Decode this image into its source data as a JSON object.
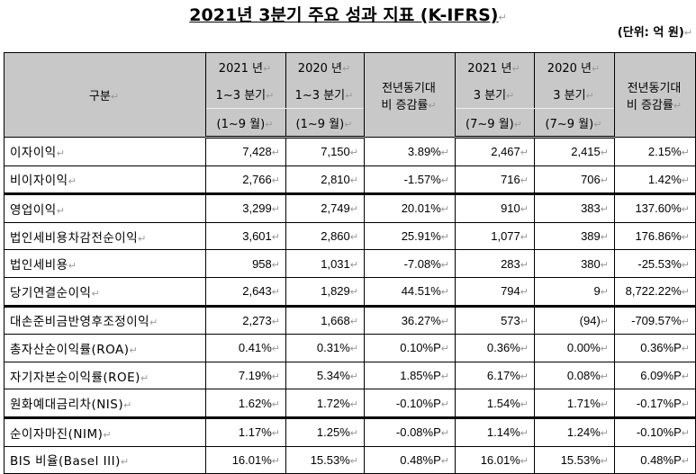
{
  "title": "2021년 3분기 주요 성과 지표 (K-IFRS)",
  "unit": "(단위: 억 원)",
  "header": {
    "category": "구분",
    "col1": [
      "2021 년",
      "1~3 분기",
      "(1~9 월)"
    ],
    "col2": [
      "2020 년",
      "1~3 분기",
      "(1~9 월)"
    ],
    "col3": [
      "전년동기대",
      "비 증감률"
    ],
    "col4": [
      "2021 년",
      "3 분기",
      "(7~9 월)"
    ],
    "col5": [
      "2020 년",
      "3 분기",
      "(7~9 월)"
    ],
    "col6": [
      "전년동기대",
      "비 증감률"
    ]
  },
  "rows": [
    {
      "label": "이자이익",
      "values": [
        "7,428",
        "7,150",
        "3.89%",
        "2,467",
        "2,415",
        "2.15%"
      ]
    },
    {
      "label": "비이자이익",
      "values": [
        "2,766",
        "2,810",
        "-1.57%",
        "716",
        "706",
        "1.42%"
      ]
    },
    {
      "label": "영업이익",
      "values": [
        "3,299",
        "2,749",
        "20.01%",
        "910",
        "383",
        "137.60%"
      ]
    },
    {
      "label": "법인세비용차감전순이익",
      "values": [
        "3,601",
        "2,860",
        "25.91%",
        "1,077",
        "389",
        "176.86%"
      ]
    },
    {
      "label": "법인세비용",
      "values": [
        "958",
        "1,031",
        "-7.08%",
        "283",
        "380",
        "-25.53%"
      ]
    },
    {
      "label": "당기연결순이익",
      "values": [
        "2,643",
        "1,829",
        "44.51%",
        "794",
        "9",
        "8,722.22%"
      ]
    },
    {
      "label": "대손준비금반영후조정이익",
      "values": [
        "2,273",
        "1,668",
        "36.27%",
        "573",
        "(94)",
        "-709.57%"
      ]
    },
    {
      "label": "총자산순이익률(ROA)",
      "values": [
        "0.41%",
        "0.31%",
        "0.10%P",
        "0.36%",
        "0.00%",
        "0.36%P"
      ]
    },
    {
      "label": "자기자본순이익률(ROE)",
      "values": [
        "7.19%",
        "5.34%",
        "1.85%P",
        "6.17%",
        "0.08%",
        "6.09%P"
      ]
    },
    {
      "label": "원화예대금리차(NIS)",
      "values": [
        "1.62%",
        "1.72%",
        "-0.10%P",
        "1.54%",
        "1.71%",
        "-0.17%P"
      ]
    },
    {
      "label": "순이자마진(NIM)",
      "values": [
        "1.17%",
        "1.25%",
        "-0.08%P",
        "1.14%",
        "1.24%",
        "-0.10%P"
      ]
    },
    {
      "label": "BIS 비율(Basel III)",
      "values": [
        "16.01%",
        "15.53%",
        "0.48%P",
        "16.01%",
        "15.53%",
        "0.48%P"
      ]
    }
  ]
}
